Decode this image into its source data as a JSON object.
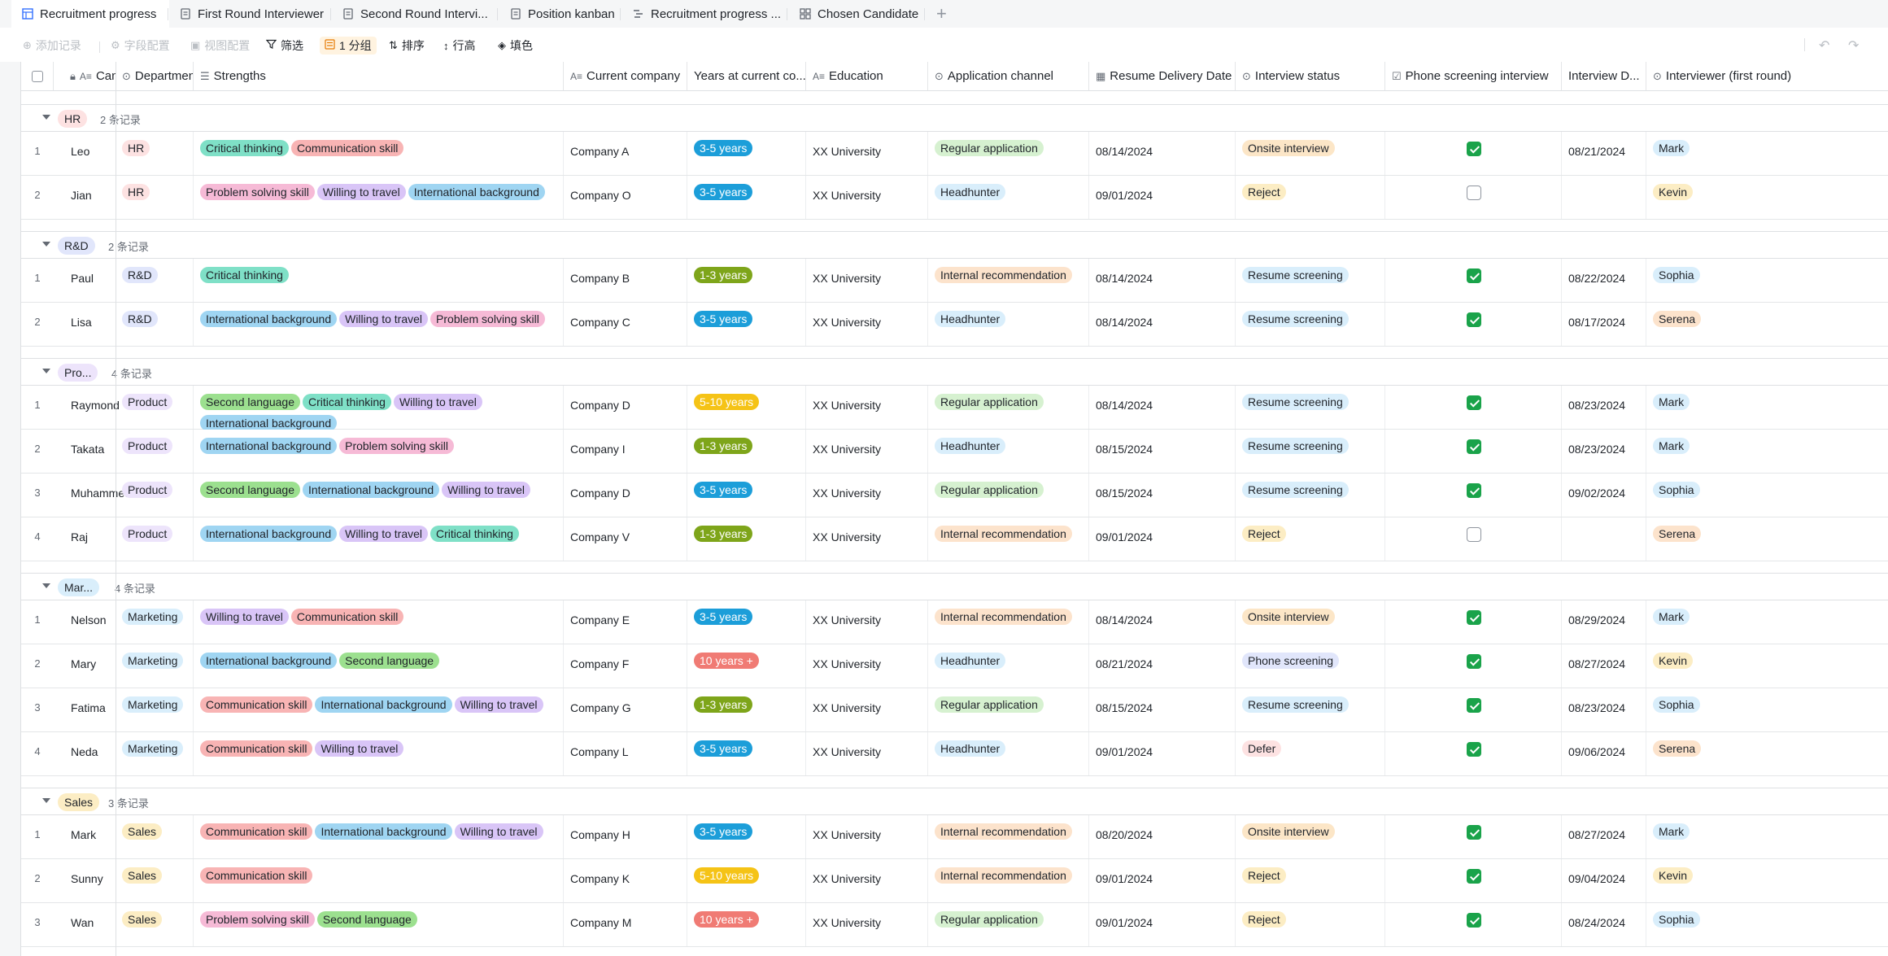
{
  "tabs": [
    {
      "label": "Recruitment progress",
      "icon": "grid-table-icon",
      "active": true
    },
    {
      "label": "First Round Interviewer",
      "icon": "form-icon"
    },
    {
      "label": "Second Round Intervi...",
      "icon": "form-icon"
    },
    {
      "label": "Position kanban",
      "icon": "form-icon"
    },
    {
      "label": "Recruitment progress ...",
      "icon": "gantt-icon"
    },
    {
      "label": "Chosen Candidate",
      "icon": "gallery-icon"
    }
  ],
  "toolbar": {
    "add_record": "添加记录",
    "field_config": "字段配置",
    "view_config": "视图配置",
    "filter": "筛选",
    "group": "1 分组",
    "sort": "排序",
    "row_height": "行高",
    "fill_color": "填色"
  },
  "columns": {
    "candidate": "Candidate",
    "department": "Department",
    "strengths": "Strengths",
    "company": "Current company",
    "years": "Years at current co...",
    "education": "Education",
    "channel": "Application channel",
    "delivery": "Resume Delivery Date",
    "status": "Interview status",
    "phone": "Phone screening interview",
    "idate": "Interview D...",
    "interviewer": "Interviewer (first round)"
  },
  "colors": {
    "HR": "#fde2e2",
    "R&D": "#e1e6fb",
    "Product": "#ede4fb",
    "Marketing": "#d9eefb",
    "Sales": "#fcedc4",
    "Critical thinking": "#7fe0c7",
    "Communication skill": "#f8b4b4",
    "Problem solving skill": "#f6bad6",
    "Willing to travel": "#d9c5f7",
    "International background": "#9fd5f2",
    "Second language": "#9ce08f",
    "3-5 years": "#1c9ed9",
    "1-3 years": "#7ea51a",
    "5-10 years": "#f5c316",
    "10 years +": "#f07b74",
    "Regular application": "#d6f1d0",
    "Headhunter": "#d9eefb",
    "Internal recommendation": "#fce3cc",
    "Onsite interview": "#fce6c7",
    "Reject": "#fcedc4",
    "Resume screening": "#d9eefb",
    "Phone screening": "#e1e6fb",
    "Defer": "#fde2e2",
    "Mark": "#d9eefb",
    "Kevin": "#fcedc4",
    "Sophia": "#d9eefb",
    "Serena": "#fce3cc"
  },
  "groups": [
    {
      "tag": "HR",
      "color_key": "HR",
      "count": "2 条记录",
      "rows": [
        {
          "n": "1",
          "candidate": "Leo",
          "department": "HR",
          "strengths": [
            "Critical thinking",
            "Communication skill"
          ],
          "company": "Company A",
          "years": "3-5 years",
          "education": "XX University",
          "channel": "Regular application",
          "delivery": "08/14/2024",
          "status": "Onsite interview",
          "phone": true,
          "idate": "08/21/2024",
          "interviewer": "Mark"
        },
        {
          "n": "2",
          "candidate": "Jian",
          "department": "HR",
          "strengths": [
            "Problem solving skill",
            "Willing to travel",
            "International background"
          ],
          "company": "Company O",
          "years": "3-5 years",
          "education": "XX University",
          "channel": "Headhunter",
          "delivery": "09/01/2024",
          "status": "Reject",
          "phone": false,
          "idate": "",
          "interviewer": "Kevin"
        }
      ]
    },
    {
      "tag": "R&D",
      "color_key": "R&D",
      "count": "2 条记录",
      "rows": [
        {
          "n": "1",
          "candidate": "Paul",
          "department": "R&D",
          "strengths": [
            "Critical thinking"
          ],
          "company": "Company B",
          "years": "1-3 years",
          "education": "XX University",
          "channel": "Internal recommendation",
          "delivery": "08/14/2024",
          "status": "Resume screening",
          "phone": true,
          "idate": "08/22/2024",
          "interviewer": "Sophia"
        },
        {
          "n": "2",
          "candidate": "Lisa",
          "department": "R&D",
          "strengths": [
            "International background",
            "Willing to travel",
            "Problem solving skill"
          ],
          "company": "Company C",
          "years": "3-5 years",
          "education": "XX University",
          "channel": "Headhunter",
          "delivery": "08/14/2024",
          "status": "Resume screening",
          "phone": true,
          "idate": "08/17/2024",
          "interviewer": "Serena"
        }
      ]
    },
    {
      "tag": "Pro...",
      "color_key": "Product",
      "count": "4 条记录",
      "rows": [
        {
          "n": "1",
          "candidate": "Raymond",
          "department": "Product",
          "strengths": [
            "Second language",
            "Critical thinking",
            "Willing to travel",
            "International background"
          ],
          "company": "Company D",
          "years": "5-10 years",
          "education": "XX University",
          "channel": "Regular application",
          "delivery": "08/14/2024",
          "status": "Resume screening",
          "phone": true,
          "idate": "08/23/2024",
          "interviewer": "Mark"
        },
        {
          "n": "2",
          "candidate": "Takata",
          "department": "Product",
          "strengths": [
            "International background",
            "Problem solving skill"
          ],
          "company": "Company I",
          "years": "1-3 years",
          "education": "XX University",
          "channel": "Headhunter",
          "delivery": "08/15/2024",
          "status": "Resume screening",
          "phone": true,
          "idate": "08/23/2024",
          "interviewer": "Mark"
        },
        {
          "n": "3",
          "candidate": "Muhammed",
          "department": "Product",
          "strengths": [
            "Second language",
            "International background",
            "Willing to travel"
          ],
          "company": "Company D",
          "years": "3-5 years",
          "education": "XX University",
          "channel": "Regular application",
          "delivery": "08/15/2024",
          "status": "Resume screening",
          "phone": true,
          "idate": "09/02/2024",
          "interviewer": "Sophia"
        },
        {
          "n": "4",
          "candidate": "Raj",
          "department": "Product",
          "strengths": [
            "International background",
            "Willing to travel",
            "Critical thinking"
          ],
          "company": "Company V",
          "years": "1-3 years",
          "education": "XX University",
          "channel": "Internal recommendation",
          "delivery": "09/01/2024",
          "status": "Reject",
          "phone": false,
          "idate": "",
          "interviewer": "Serena"
        }
      ]
    },
    {
      "tag": "Mar...",
      "color_key": "Marketing",
      "count": "4 条记录",
      "rows": [
        {
          "n": "1",
          "candidate": "Nelson",
          "department": "Marketing",
          "strengths": [
            "Willing to travel",
            "Communication skill"
          ],
          "company": "Company E",
          "years": "3-5 years",
          "education": "XX University",
          "channel": "Internal recommendation",
          "delivery": "08/14/2024",
          "status": "Onsite interview",
          "phone": true,
          "idate": "08/29/2024",
          "interviewer": "Mark"
        },
        {
          "n": "2",
          "candidate": "Mary",
          "department": "Marketing",
          "strengths": [
            "International background",
            "Second language"
          ],
          "company": "Company F",
          "years": "10 years +",
          "education": "XX University",
          "channel": "Headhunter",
          "delivery": "08/21/2024",
          "status": "Phone screening",
          "phone": true,
          "idate": "08/27/2024",
          "interviewer": "Kevin"
        },
        {
          "n": "3",
          "candidate": "Fatima",
          "department": "Marketing",
          "strengths": [
            "Communication skill",
            "International background",
            "Willing to travel"
          ],
          "company": "Company G",
          "years": "1-3 years",
          "education": "XX University",
          "channel": "Regular application",
          "delivery": "08/15/2024",
          "status": "Resume screening",
          "phone": true,
          "idate": "08/23/2024",
          "interviewer": "Sophia"
        },
        {
          "n": "4",
          "candidate": "Neda",
          "department": "Marketing",
          "strengths": [
            "Communication skill",
            "Willing to travel"
          ],
          "company": "Company L",
          "years": "3-5 years",
          "education": "XX University",
          "channel": "Headhunter",
          "delivery": "09/01/2024",
          "status": "Defer",
          "phone": true,
          "idate": "09/06/2024",
          "interviewer": "Serena"
        }
      ]
    },
    {
      "tag": "Sales",
      "color_key": "Sales",
      "count": "3 条记录",
      "rows": [
        {
          "n": "1",
          "candidate": "Mark",
          "department": "Sales",
          "strengths": [
            "Communication skill",
            "International background",
            "Willing to travel"
          ],
          "company": "Company H",
          "years": "3-5 years",
          "education": "XX University",
          "channel": "Internal recommendation",
          "delivery": "08/20/2024",
          "status": "Onsite interview",
          "phone": true,
          "idate": "08/27/2024",
          "interviewer": "Mark"
        },
        {
          "n": "2",
          "candidate": "Sunny",
          "department": "Sales",
          "strengths": [
            "Communication skill"
          ],
          "company": "Company K",
          "years": "5-10 years",
          "education": "XX University",
          "channel": "Internal recommendation",
          "delivery": "09/01/2024",
          "status": "Reject",
          "phone": true,
          "idate": "09/04/2024",
          "interviewer": "Kevin"
        },
        {
          "n": "3",
          "candidate": "Wan",
          "department": "Sales",
          "strengths": [
            "Problem solving skill",
            "Second language"
          ],
          "company": "Company M",
          "years": "10 years +",
          "education": "XX University",
          "channel": "Regular application",
          "delivery": "09/01/2024",
          "status": "Reject",
          "phone": true,
          "idate": "08/24/2024",
          "interviewer": "Sophia"
        }
      ]
    }
  ]
}
